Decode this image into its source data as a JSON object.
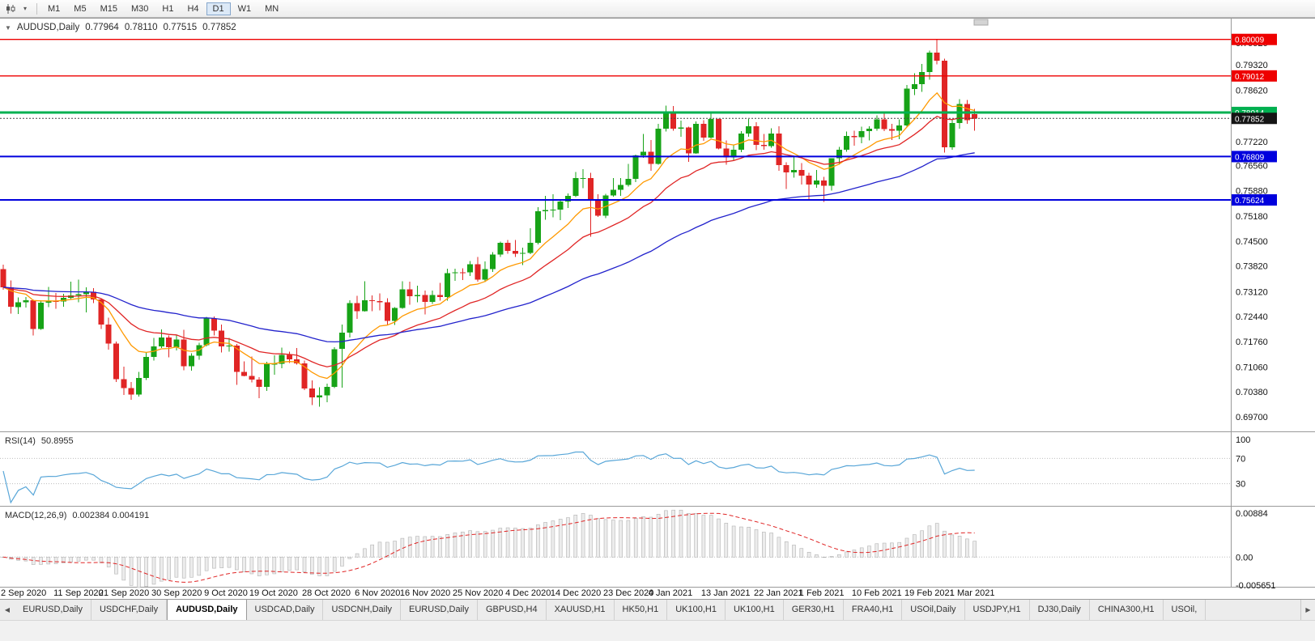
{
  "toolbar": {
    "timeframes": [
      "M1",
      "M5",
      "M15",
      "M30",
      "H1",
      "H4",
      "D1",
      "W1",
      "MN"
    ],
    "active_timeframe": "D1",
    "dropdown_caret": "▾"
  },
  "chart": {
    "title": "AUDUSD,Daily",
    "collapse_icon": "▼",
    "ohlc": {
      "open": "0.77964",
      "high": "0.78110",
      "low": "0.77515",
      "close": "0.77852"
    }
  },
  "chart_data": {
    "type": "candlestick",
    "symbol": "AUDUSD",
    "timeframe": "Daily",
    "bull_color": "#17a317",
    "bear_color": "#e02525",
    "main_range": {
      "top": 0.806,
      "bottom": 0.693
    },
    "price_axis_labels": [
      "0.79920",
      "0.79320",
      "0.78620",
      "0.77920",
      "0.77220",
      "0.76560",
      "0.75880",
      "0.75180",
      "0.74500",
      "0.73820",
      "0.73120",
      "0.72440",
      "0.71760",
      "0.71060",
      "0.70380",
      "0.69700"
    ],
    "date_axis_labels": [
      {
        "index": 0,
        "label": "2 Sep 2020"
      },
      {
        "index": 7,
        "label": "11 Sep 2020"
      },
      {
        "index": 13,
        "label": "21 Sep 2020"
      },
      {
        "index": 20,
        "label": "30 Sep 2020"
      },
      {
        "index": 27,
        "label": "9 Oct 2020"
      },
      {
        "index": 33,
        "label": "19 Oct 2020"
      },
      {
        "index": 40,
        "label": "28 Oct 2020"
      },
      {
        "index": 47,
        "label": "6 Nov 2020"
      },
      {
        "index": 53,
        "label": "16 Nov 2020"
      },
      {
        "index": 60,
        "label": "25 Nov 2020"
      },
      {
        "index": 67,
        "label": "4 Dec 2020"
      },
      {
        "index": 73,
        "label": "14 Dec 2020"
      },
      {
        "index": 80,
        "label": "23 Dec 2020"
      },
      {
        "index": 86,
        "label": "4 Jan 2021"
      },
      {
        "index": 93,
        "label": "13 Jan 2021"
      },
      {
        "index": 100,
        "label": "22 Jan 2021"
      },
      {
        "index": 106,
        "label": "1 Feb 2021"
      },
      {
        "index": 113,
        "label": "10 Feb 2021"
      },
      {
        "index": 120,
        "label": "19 Feb 2021"
      },
      {
        "index": 126,
        "label": "1 Mar 2021"
      }
    ],
    "hlines": [
      {
        "price": 0.80009,
        "label": "0.80009",
        "color": "#ee0000",
        "width": 1.4
      },
      {
        "price": 0.79012,
        "label": "0.79012",
        "color": "#ee0000",
        "width": 1.4
      },
      {
        "price": 0.78014,
        "label": "0.78014",
        "color": "#00b050",
        "width": 3
      },
      {
        "price": 0.76809,
        "label": "0.76809",
        "color": "#0000dd",
        "width": 2
      },
      {
        "price": 0.75624,
        "label": "0.75624",
        "color": "#0000dd",
        "width": 2
      }
    ],
    "current_price": {
      "value": 0.77852,
      "label": "0.77852",
      "box_color": "#151515"
    },
    "moving_averages": [
      {
        "period": 10,
        "color": "#ff9900"
      },
      {
        "period": 21,
        "color": "#e02525"
      },
      {
        "period": 55,
        "color": "#2222cc"
      }
    ],
    "rsi": {
      "name": "RSI(14)",
      "value": "50.8955",
      "period": 14,
      "color": "#58a6d8",
      "levels": [
        70,
        30
      ],
      "scale": [
        "100",
        "70",
        "30"
      ]
    },
    "macd": {
      "name": "MACD(12,26,9)",
      "values": "0.002384 0.004191",
      "fast": 12,
      "slow": 26,
      "signal_period": 9,
      "hist_color": "#ececec",
      "signal_color": "#e02525",
      "scale": [
        {
          "label": "0.00884",
          "value": 0.00884
        },
        {
          "label": "0.00",
          "value": 0
        },
        {
          "label": "-0.005651",
          "value": -0.005651
        }
      ]
    },
    "candles": [
      [
        0.7373,
        0.7385,
        0.7317,
        0.7324
      ],
      [
        0.7324,
        0.7342,
        0.7252,
        0.727
      ],
      [
        0.727,
        0.7296,
        0.7251,
        0.7283
      ],
      [
        0.7283,
        0.7297,
        0.7268,
        0.7288
      ],
      [
        0.7288,
        0.7291,
        0.7192,
        0.721
      ],
      [
        0.721,
        0.7288,
        0.7208,
        0.7282
      ],
      [
        0.7282,
        0.7325,
        0.7269,
        0.7286
      ],
      [
        0.7286,
        0.7308,
        0.7265,
        0.7285
      ],
      [
        0.7285,
        0.7306,
        0.727,
        0.7295
      ],
      [
        0.7295,
        0.7339,
        0.7289,
        0.7302
      ],
      [
        0.7302,
        0.7345,
        0.7283,
        0.7305
      ],
      [
        0.7305,
        0.7324,
        0.7255,
        0.7312
      ],
      [
        0.7312,
        0.7321,
        0.728,
        0.729
      ],
      [
        0.729,
        0.7292,
        0.721,
        0.7222
      ],
      [
        0.7222,
        0.7241,
        0.7153,
        0.717
      ],
      [
        0.717,
        0.7175,
        0.7065,
        0.7073
      ],
      [
        0.7073,
        0.7107,
        0.703,
        0.7048
      ],
      [
        0.7048,
        0.7065,
        0.7016,
        0.7031
      ],
      [
        0.7031,
        0.7093,
        0.7025,
        0.7076
      ],
      [
        0.7076,
        0.7146,
        0.707,
        0.7133
      ],
      [
        0.7133,
        0.7185,
        0.7123,
        0.7162
      ],
      [
        0.7162,
        0.7209,
        0.7158,
        0.7186
      ],
      [
        0.7186,
        0.7192,
        0.7132,
        0.716
      ],
      [
        0.716,
        0.7192,
        0.7151,
        0.7181
      ],
      [
        0.7181,
        0.7208,
        0.7097,
        0.7108
      ],
      [
        0.7108,
        0.7143,
        0.7096,
        0.7137
      ],
      [
        0.7137,
        0.7172,
        0.7126,
        0.7165
      ],
      [
        0.7165,
        0.7243,
        0.7162,
        0.7238
      ],
      [
        0.7238,
        0.7244,
        0.7192,
        0.7205
      ],
      [
        0.7205,
        0.7222,
        0.7146,
        0.7162
      ],
      [
        0.7162,
        0.7185,
        0.7148,
        0.7164
      ],
      [
        0.7164,
        0.7169,
        0.7057,
        0.7093
      ],
      [
        0.7093,
        0.7121,
        0.708,
        0.7081
      ],
      [
        0.7081,
        0.7135,
        0.7064,
        0.7071
      ],
      [
        0.7071,
        0.7078,
        0.7021,
        0.7052
      ],
      [
        0.7052,
        0.712,
        0.7041,
        0.7113
      ],
      [
        0.7113,
        0.7138,
        0.7085,
        0.7115
      ],
      [
        0.7115,
        0.7159,
        0.7102,
        0.7139
      ],
      [
        0.7139,
        0.7148,
        0.7117,
        0.7127
      ],
      [
        0.7127,
        0.7158,
        0.7112,
        0.7116
      ],
      [
        0.7116,
        0.7124,
        0.7043,
        0.7047
      ],
      [
        0.7047,
        0.7069,
        0.7002,
        0.7023
      ],
      [
        0.7023,
        0.705,
        0.6997,
        0.7028
      ],
      [
        0.7028,
        0.706,
        0.701,
        0.7052
      ],
      [
        0.7052,
        0.716,
        0.7048,
        0.7155
      ],
      [
        0.7155,
        0.7222,
        0.7049,
        0.72
      ],
      [
        0.72,
        0.7288,
        0.7186,
        0.7281
      ],
      [
        0.7281,
        0.73,
        0.7237,
        0.7258
      ],
      [
        0.7258,
        0.734,
        0.7257,
        0.7288
      ],
      [
        0.7288,
        0.7302,
        0.7258,
        0.7286
      ],
      [
        0.7286,
        0.7307,
        0.7261,
        0.7283
      ],
      [
        0.7283,
        0.7294,
        0.7222,
        0.7232
      ],
      [
        0.7232,
        0.7269,
        0.7221,
        0.7267
      ],
      [
        0.7267,
        0.734,
        0.7265,
        0.7318
      ],
      [
        0.7318,
        0.7339,
        0.7276,
        0.7299
      ],
      [
        0.7299,
        0.7328,
        0.7283,
        0.7303
      ],
      [
        0.7303,
        0.7315,
        0.725,
        0.7284
      ],
      [
        0.7284,
        0.7315,
        0.7278,
        0.7303
      ],
      [
        0.7303,
        0.7336,
        0.7287,
        0.7297
      ],
      [
        0.7297,
        0.7374,
        0.7287,
        0.7362
      ],
      [
        0.7362,
        0.7374,
        0.7341,
        0.7365
      ],
      [
        0.7365,
        0.7376,
        0.7343,
        0.7364
      ],
      [
        0.7364,
        0.7395,
        0.7355,
        0.7387
      ],
      [
        0.7387,
        0.7407,
        0.7339,
        0.7345
      ],
      [
        0.7345,
        0.7394,
        0.7338,
        0.7373
      ],
      [
        0.7373,
        0.742,
        0.7366,
        0.7413
      ],
      [
        0.7413,
        0.7449,
        0.7406,
        0.7445
      ],
      [
        0.7445,
        0.7453,
        0.7415,
        0.7423
      ],
      [
        0.7423,
        0.7453,
        0.7406,
        0.7415
      ],
      [
        0.7415,
        0.7432,
        0.7384,
        0.7418
      ],
      [
        0.7418,
        0.7485,
        0.7414,
        0.7445
      ],
      [
        0.7445,
        0.7542,
        0.7441,
        0.7531
      ],
      [
        0.7531,
        0.7573,
        0.7508,
        0.7535
      ],
      [
        0.7535,
        0.7578,
        0.7515,
        0.7536
      ],
      [
        0.7536,
        0.7563,
        0.7507,
        0.7558
      ],
      [
        0.7558,
        0.758,
        0.754,
        0.7574
      ],
      [
        0.7574,
        0.7639,
        0.757,
        0.7622
      ],
      [
        0.7622,
        0.7646,
        0.7595,
        0.7622
      ],
      [
        0.7622,
        0.7637,
        0.7462,
        0.756
      ],
      [
        0.756,
        0.7578,
        0.7516,
        0.7519
      ],
      [
        0.7519,
        0.7579,
        0.7513,
        0.7575
      ],
      [
        0.7575,
        0.7622,
        0.7571,
        0.759
      ],
      [
        0.759,
        0.7622,
        0.7574,
        0.7603
      ],
      [
        0.7603,
        0.7661,
        0.7599,
        0.762
      ],
      [
        0.762,
        0.7686,
        0.7611,
        0.7684
      ],
      [
        0.7684,
        0.7743,
        0.7677,
        0.7694
      ],
      [
        0.7694,
        0.7726,
        0.7642,
        0.7661
      ],
      [
        0.7661,
        0.777,
        0.7659,
        0.7757
      ],
      [
        0.7757,
        0.782,
        0.7749,
        0.7803
      ],
      [
        0.7803,
        0.7819,
        0.7751,
        0.7757
      ],
      [
        0.7757,
        0.7779,
        0.7735,
        0.776
      ],
      [
        0.776,
        0.7763,
        0.7666,
        0.769
      ],
      [
        0.769,
        0.7777,
        0.7689,
        0.777
      ],
      [
        0.777,
        0.778,
        0.7724,
        0.7733
      ],
      [
        0.7733,
        0.7805,
        0.7731,
        0.7784
      ],
      [
        0.7784,
        0.7785,
        0.7701,
        0.7703
      ],
      [
        0.7703,
        0.7725,
        0.7659,
        0.7678
      ],
      [
        0.7678,
        0.7714,
        0.767,
        0.7699
      ],
      [
        0.7699,
        0.775,
        0.7693,
        0.7744
      ],
      [
        0.7744,
        0.7784,
        0.7735,
        0.7764
      ],
      [
        0.7764,
        0.7775,
        0.7698,
        0.7713
      ],
      [
        0.7713,
        0.7743,
        0.77,
        0.7709
      ],
      [
        0.7709,
        0.7758,
        0.7705,
        0.7744
      ],
      [
        0.7744,
        0.7764,
        0.7642,
        0.7658
      ],
      [
        0.7658,
        0.7665,
        0.7592,
        0.7638
      ],
      [
        0.7638,
        0.768,
        0.7623,
        0.7644
      ],
      [
        0.7644,
        0.7663,
        0.7605,
        0.7629
      ],
      [
        0.7629,
        0.7636,
        0.7563,
        0.7604
      ],
      [
        0.7604,
        0.7644,
        0.7596,
        0.7616
      ],
      [
        0.7616,
        0.7625,
        0.7557,
        0.7601
      ],
      [
        0.7601,
        0.7676,
        0.7588,
        0.7676
      ],
      [
        0.7676,
        0.7707,
        0.7659,
        0.77
      ],
      [
        0.77,
        0.7749,
        0.7694,
        0.7737
      ],
      [
        0.7737,
        0.7752,
        0.7711,
        0.7734
      ],
      [
        0.7734,
        0.7763,
        0.7717,
        0.775
      ],
      [
        0.775,
        0.7764,
        0.7725,
        0.7757
      ],
      [
        0.7757,
        0.7793,
        0.7752,
        0.7782
      ],
      [
        0.7782,
        0.7805,
        0.775,
        0.7756
      ],
      [
        0.7756,
        0.777,
        0.7726,
        0.7752
      ],
      [
        0.7752,
        0.7783,
        0.7728,
        0.7766
      ],
      [
        0.7766,
        0.7877,
        0.7762,
        0.7866
      ],
      [
        0.7866,
        0.7908,
        0.7849,
        0.7879
      ],
      [
        0.7879,
        0.7934,
        0.7858,
        0.7912
      ],
      [
        0.7912,
        0.797,
        0.7891,
        0.7965
      ],
      [
        0.7965,
        0.8001,
        0.7933,
        0.7943
      ],
      [
        0.7943,
        0.7948,
        0.7692,
        0.7706
      ],
      [
        0.7706,
        0.7784,
        0.7699,
        0.7772
      ],
      [
        0.7772,
        0.7838,
        0.7757,
        0.7824
      ],
      [
        0.7824,
        0.7836,
        0.777,
        0.778
      ],
      [
        0.77964,
        0.7811,
        0.77515,
        0.77852
      ]
    ]
  },
  "bottom_bar": {
    "left_arrow": "◀",
    "right_arrow": "▶",
    "tabs": [
      {
        "label": "EURUSD,Daily",
        "active": false
      },
      {
        "label": "USDCHF,Daily",
        "active": false
      },
      {
        "label": "AUDUSD,Daily",
        "active": true
      },
      {
        "label": "USDCAD,Daily",
        "active": false
      },
      {
        "label": "USDCNH,Daily",
        "active": false
      },
      {
        "label": "EURUSD,Daily",
        "active": false
      },
      {
        "label": "GBPUSD,H4",
        "active": false
      },
      {
        "label": "XAUUSD,H1",
        "active": false
      },
      {
        "label": "HK50,H1",
        "active": false
      },
      {
        "label": "UK100,H1",
        "active": false
      },
      {
        "label": "UK100,H1",
        "active": false
      },
      {
        "label": "GER30,H1",
        "active": false
      },
      {
        "label": "FRA40,H1",
        "active": false
      },
      {
        "label": "USOil,Daily",
        "active": false
      },
      {
        "label": "USDJPY,H1",
        "active": false
      },
      {
        "label": "DJ30,Daily",
        "active": false
      },
      {
        "label": "CHINA300,H1",
        "active": false
      },
      {
        "label": "USOil,",
        "active": false
      }
    ]
  }
}
